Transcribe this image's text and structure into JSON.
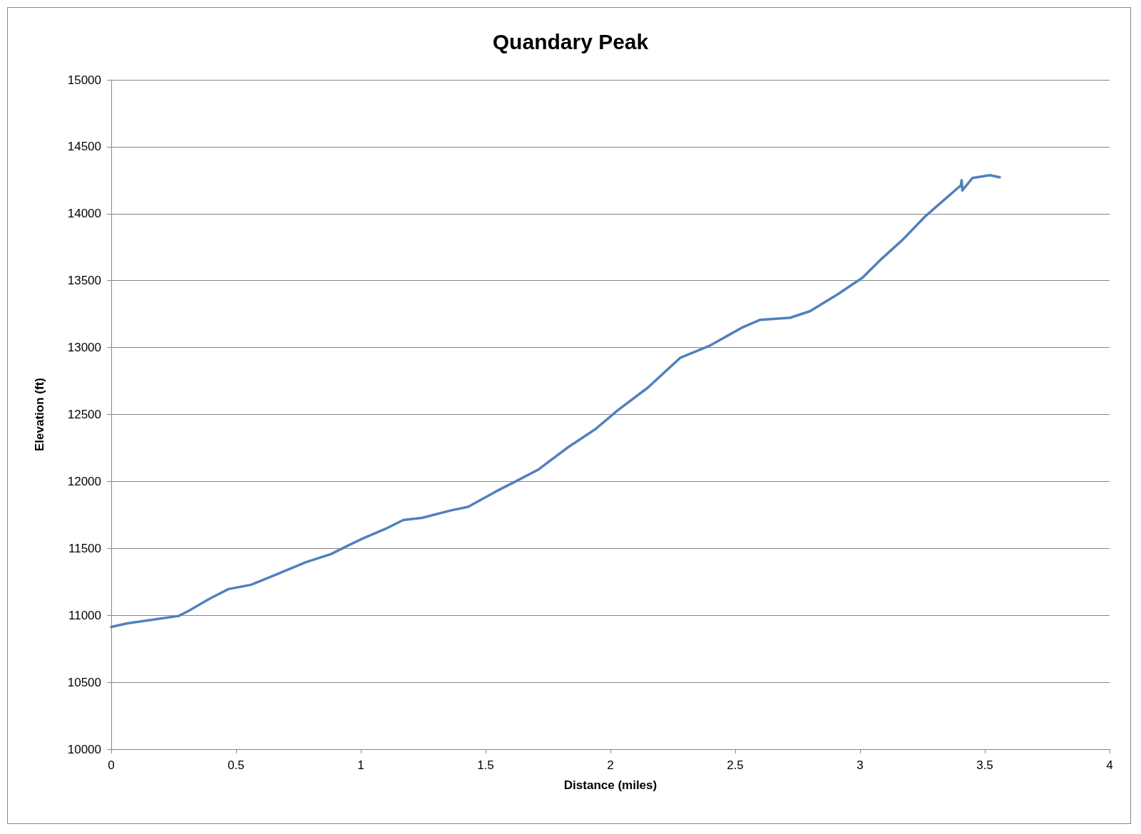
{
  "chart_data": {
    "type": "line",
    "title": "Quandary Peak",
    "xlabel": "Distance (miles)",
    "ylabel": "Elevation (ft)",
    "xlim": [
      0,
      4
    ],
    "xticks": [
      0,
      0.5,
      1,
      1.5,
      2,
      2.5,
      3,
      3.5,
      4
    ],
    "ylim": [
      10000,
      15000
    ],
    "yticks": [
      10000,
      10500,
      11000,
      11500,
      12000,
      12500,
      13000,
      13500,
      14000,
      14500,
      15000
    ],
    "grid": "y",
    "marker": "none",
    "line_style": "solid",
    "series": [
      {
        "color": "#4f81bd",
        "x": [
          0,
          0.064,
          0.27,
          0.31,
          0.4,
          0.47,
          0.56,
          0.66,
          0.78,
          0.88,
          0.95,
          1.01,
          1.1,
          1.17,
          1.245,
          1.36,
          1.43,
          1.54,
          1.62,
          1.71,
          1.83,
          1.94,
          2.03,
          2.15,
          2.28,
          2.4,
          2.53,
          2.6,
          2.72,
          2.8,
          2.91,
          3.01,
          3.08,
          3.17,
          3.26,
          3.36,
          3.404,
          3.407,
          3.41,
          3.45,
          3.52,
          3.56
        ],
        "values": [
          10913,
          10940,
          10995,
          11033,
          11130,
          11196,
          11228,
          11304,
          11397,
          11457,
          11522,
          11576,
          11647,
          11712,
          11728,
          11783,
          11810,
          11924,
          12000,
          12087,
          12255,
          12391,
          12533,
          12701,
          12924,
          13016,
          13152,
          13207,
          13223,
          13272,
          13397,
          13522,
          13652,
          13804,
          13978,
          14141,
          14212,
          14250,
          14174,
          14266,
          14288,
          14272
        ]
      }
    ]
  }
}
